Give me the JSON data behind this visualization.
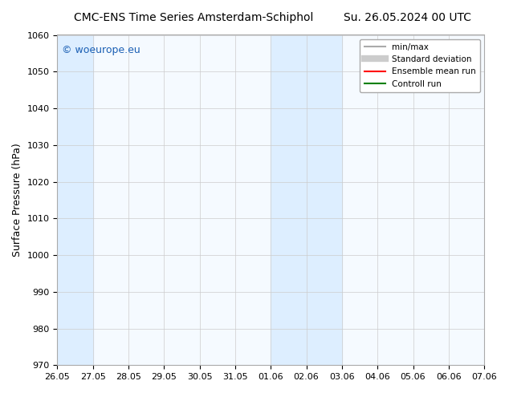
{
  "title_left": "CMC-ENS Time Series Amsterdam-Schiphol",
  "title_right": "Su. 26.05.2024 00 UTC",
  "ylabel": "Surface Pressure (hPa)",
  "ylim": [
    970,
    1060
  ],
  "yticks": [
    970,
    980,
    990,
    1000,
    1010,
    1020,
    1030,
    1040,
    1050,
    1060
  ],
  "xtick_labels": [
    "26.05",
    "27.05",
    "28.05",
    "29.05",
    "30.05",
    "31.05",
    "01.06",
    "02.06",
    "03.06",
    "04.06",
    "05.06",
    "06.06",
    "07.06"
  ],
  "shaded_regions": [
    {
      "xstart": 0,
      "xend": 1,
      "color": "#ddeeff"
    },
    {
      "xstart": 6,
      "xend": 8,
      "color": "#ddeeff"
    }
  ],
  "bg_color": "#ffffff",
  "plot_bg_color": "#f5faff",
  "watermark": "© woeurope.eu",
  "legend_entries": [
    {
      "label": "min/max",
      "color": "#aaaaaa",
      "lw": 1.5,
      "ls": "-"
    },
    {
      "label": "Standard deviation",
      "color": "#cccccc",
      "lw": 6,
      "ls": "-"
    },
    {
      "label": "Ensemble mean run",
      "color": "red",
      "lw": 1.5,
      "ls": "-"
    },
    {
      "label": "Controll run",
      "color": "green",
      "lw": 1.5,
      "ls": "-"
    }
  ]
}
